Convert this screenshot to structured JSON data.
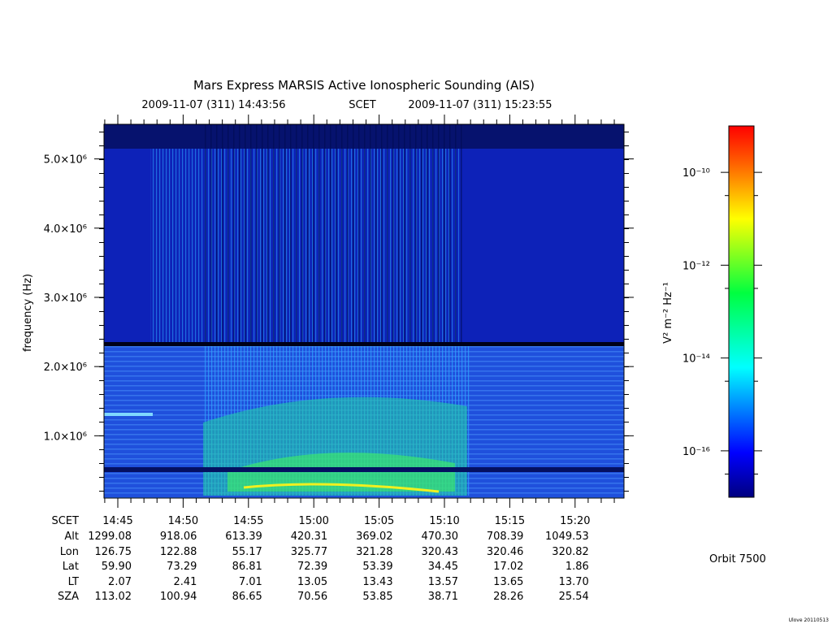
{
  "chart_data": {
    "type": "spectrogram",
    "title": "Mars Express MARSIS Active Ionospheric Sounding (AIS)",
    "time_start": "2009-11-07 (311) 14:43:56",
    "time_label": "SCET",
    "time_end": "2009-11-07 (311) 15:23:55",
    "ylabel": "frequency (Hz)",
    "ylim": [
      100000,
      5500000
    ],
    "yticks": [
      {
        "value": 1000000,
        "label": "1.0×10⁶"
      },
      {
        "value": 2000000,
        "label": "2.0×10⁶"
      },
      {
        "value": 3000000,
        "label": "3.0×10⁶"
      },
      {
        "value": 4000000,
        "label": "4.0×10⁶"
      },
      {
        "value": 5000000,
        "label": "5.0×10⁶"
      }
    ],
    "colorbar": {
      "label": "V² m⁻² Hz⁻¹",
      "scale": "log",
      "lim": [
        1e-17,
        1e-09
      ],
      "ticks": [
        {
          "value": 1e-10,
          "label": "10⁻¹⁰"
        },
        {
          "value": 1e-12,
          "label": "10⁻¹²"
        },
        {
          "value": 1e-14,
          "label": "10⁻¹⁴"
        },
        {
          "value": 1e-16,
          "label": "10⁻¹⁶"
        }
      ]
    }
  },
  "ephemeris": {
    "rows": [
      {
        "label": "SCET",
        "values": [
          "14:45",
          "14:50",
          "14:55",
          "15:00",
          "15:05",
          "15:10",
          "15:15",
          "15:20"
        ]
      },
      {
        "label": "Alt",
        "values": [
          "1299.08",
          "918.06",
          "613.39",
          "420.31",
          "369.02",
          "470.30",
          "708.39",
          "1049.53"
        ]
      },
      {
        "label": "Lon",
        "values": [
          "126.75",
          "122.88",
          "55.17",
          "325.77",
          "321.28",
          "320.43",
          "320.46",
          "320.82"
        ]
      },
      {
        "label": "Lat",
        "values": [
          "59.90",
          "73.29",
          "86.81",
          "72.39",
          "53.39",
          "34.45",
          "17.02",
          "1.86"
        ]
      },
      {
        "label": "LT",
        "values": [
          "2.07",
          "2.41",
          "7.01",
          "13.05",
          "13.43",
          "13.57",
          "13.65",
          "13.70"
        ]
      },
      {
        "label": "SZA",
        "values": [
          "113.02",
          "100.94",
          "86.65",
          "70.56",
          "53.85",
          "38.71",
          "28.26",
          "25.54"
        ]
      }
    ]
  },
  "orbit": "Orbit 7500",
  "footer": "Ulove 20110513"
}
